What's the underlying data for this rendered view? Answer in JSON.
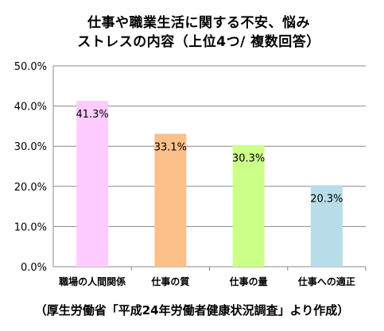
{
  "chart_data": {
    "type": "bar",
    "title_line1": "仕事や職業生活に関する不安、悩み",
    "title_line2": "ストレスの内容（上位4つ/  複数回答）",
    "categories": [
      "職場の人間関係",
      "仕事の質",
      "仕事の量",
      "仕事への適正"
    ],
    "values": [
      41.3,
      33.1,
      30.3,
      20.3
    ],
    "value_labels": [
      "41.3%",
      "33.1%",
      "30.3%",
      "20.3%"
    ],
    "bar_colors": [
      "#ffccff",
      "#fcc08a",
      "#ccff88",
      "#b8dde8"
    ],
    "ylim": [
      0,
      50
    ],
    "y_ticks": [
      "0.0%",
      "10.0%",
      "20.0%",
      "30.0%",
      "40.0%",
      "50.0%"
    ],
    "grid": true,
    "legend": "none"
  },
  "footer": {
    "source": "（厚生労働省「平成24年労働者健康状況調査」より作成）"
  }
}
